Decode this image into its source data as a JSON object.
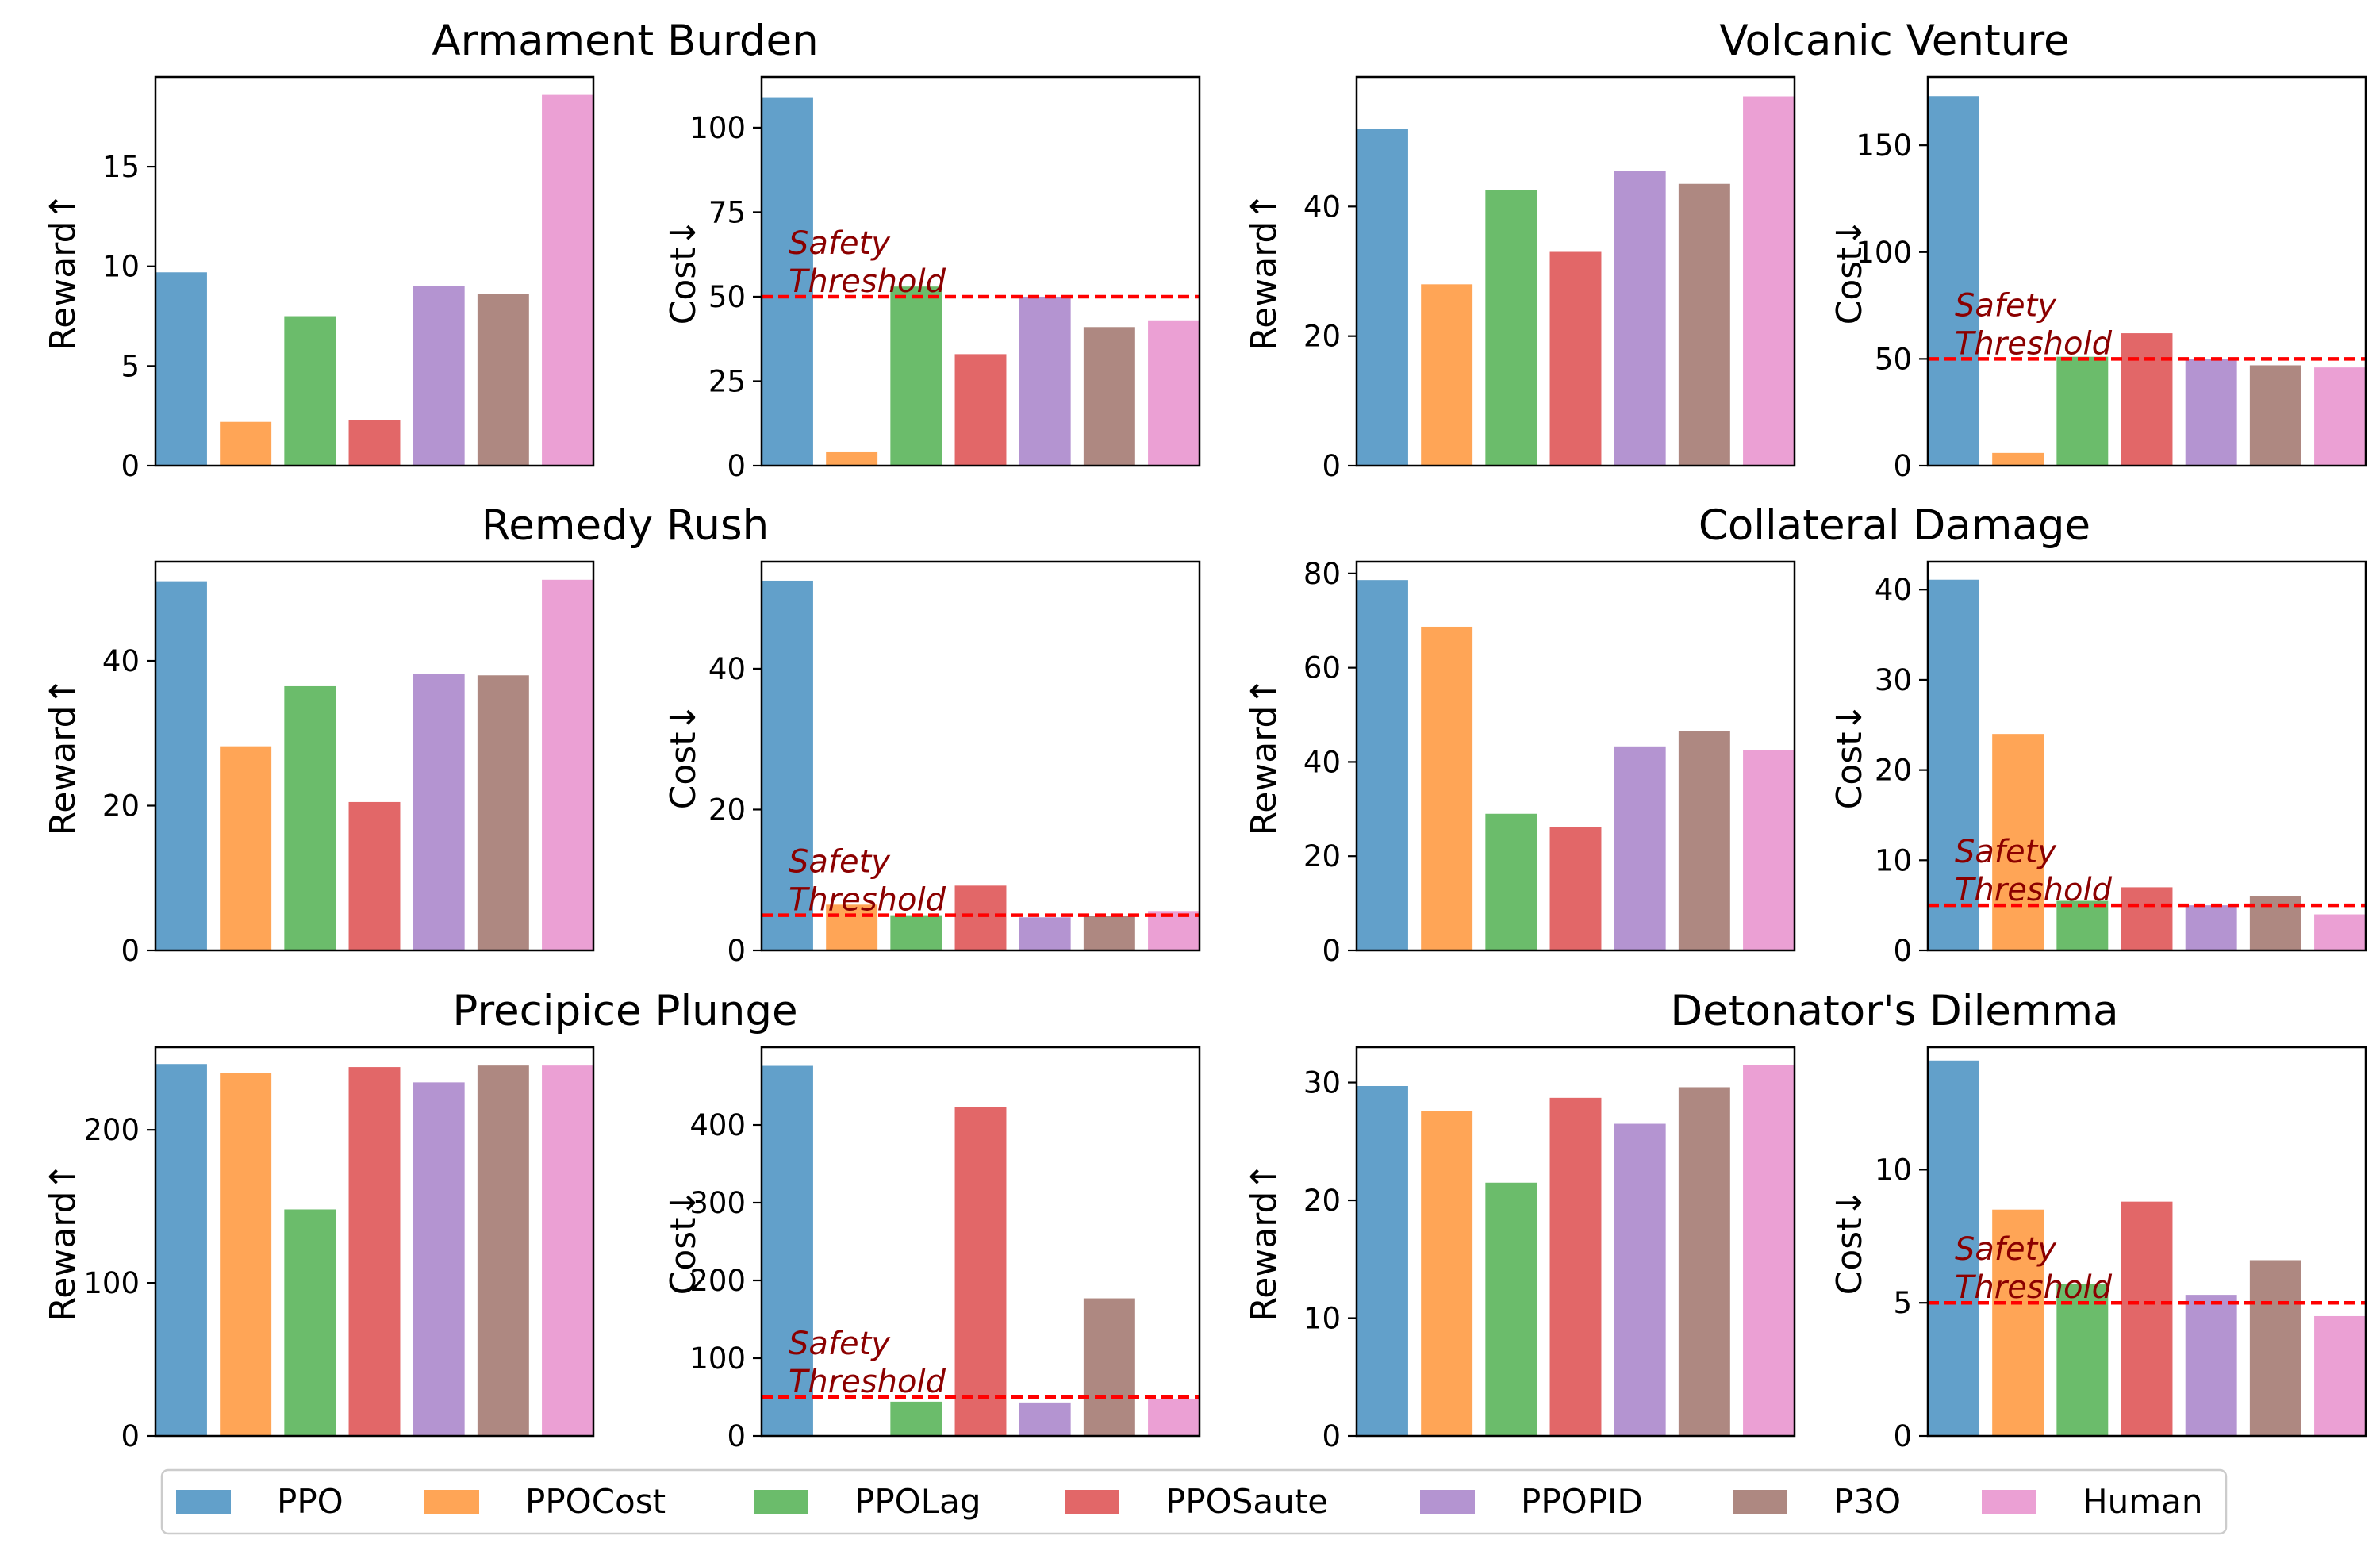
{
  "legend": {
    "placement": "bottom",
    "entries": [
      {
        "name": "PPO",
        "color": "#1f77b4"
      },
      {
        "name": "PPOCost",
        "color": "#ff7f0e"
      },
      {
        "name": "PPOLag",
        "color": "#2ca02c"
      },
      {
        "name": "PPOSaute",
        "color": "#d62728"
      },
      {
        "name": "PPOPID",
        "color": "#9467bd"
      },
      {
        "name": "P3O",
        "color": "#8c564b"
      },
      {
        "name": "Human",
        "color": "#e377c2"
      }
    ]
  },
  "threshold_style": {
    "line_color": "#ff0000",
    "text_color": "#8b0000",
    "label_line1": "Safety",
    "label_line2": "Threshold"
  },
  "chart_data": [
    {
      "type": "bar",
      "group": "Armament Burden",
      "ylabel": "Reward↑",
      "ylim": [
        0,
        19.5
      ],
      "yticks": [
        0,
        5,
        10,
        15
      ],
      "categories": [
        "PPO",
        "PPOCost",
        "PPOLag",
        "PPOSaute",
        "PPOPID",
        "P3O",
        "Human"
      ],
      "values": [
        9.7,
        2.2,
        7.5,
        2.3,
        9.0,
        8.6,
        18.6
      ]
    },
    {
      "type": "bar",
      "group": "Armament Burden",
      "ylabel": "Cost↓",
      "ylim": [
        0,
        115
      ],
      "yticks": [
        0,
        25,
        50,
        75,
        100
      ],
      "categories": [
        "PPO",
        "PPOCost",
        "PPOLag",
        "PPOSaute",
        "PPOPID",
        "P3O",
        "Human"
      ],
      "values": [
        109,
        4,
        53,
        33,
        50,
        41,
        43
      ],
      "threshold": 50
    },
    {
      "type": "bar",
      "group": "Volcanic Venture",
      "ylabel": "Reward↑",
      "ylim": [
        0,
        60
      ],
      "yticks": [
        0,
        20,
        40
      ],
      "categories": [
        "PPO",
        "PPOCost",
        "PPOLag",
        "PPOSaute",
        "PPOPID",
        "P3O",
        "Human"
      ],
      "values": [
        52,
        28,
        42.5,
        33,
        45.5,
        43.5,
        57
      ]
    },
    {
      "type": "bar",
      "group": "Volcanic Venture",
      "ylabel": "Cost↓",
      "ylim": [
        0,
        182
      ],
      "yticks": [
        0,
        50,
        100,
        150
      ],
      "categories": [
        "PPO",
        "PPOCost",
        "PPOLag",
        "PPOSaute",
        "PPOPID",
        "P3O",
        "Human"
      ],
      "values": [
        173,
        6,
        51,
        62,
        50,
        47,
        46
      ],
      "threshold": 50
    },
    {
      "type": "bar",
      "group": "Remedy Rush",
      "ylabel": "Reward↑",
      "ylim": [
        0,
        53.7
      ],
      "yticks": [
        0,
        20,
        40
      ],
      "categories": [
        "PPO",
        "PPOCost",
        "PPOLag",
        "PPOSaute",
        "PPOPID",
        "P3O",
        "Human"
      ],
      "values": [
        51,
        28.2,
        36.5,
        20.5,
        38.2,
        38,
        51.2
      ]
    },
    {
      "type": "bar",
      "group": "Remedy Rush",
      "ylabel": "Cost↓",
      "ylim": [
        0,
        55.2
      ],
      "yticks": [
        0,
        20,
        40
      ],
      "categories": [
        "PPO",
        "PPOCost",
        "PPOLag",
        "PPOSaute",
        "PPOPID",
        "P3O",
        "Human"
      ],
      "values": [
        52.5,
        6.5,
        5,
        9.2,
        4.7,
        4.9,
        5.6
      ],
      "threshold": 5
    },
    {
      "type": "bar",
      "group": "Collateral Damage",
      "ylabel": "Reward↑",
      "ylim": [
        0,
        82.5
      ],
      "yticks": [
        0,
        20,
        40,
        60,
        80
      ],
      "categories": [
        "PPO",
        "PPOCost",
        "PPOLag",
        "PPOSaute",
        "PPOPID",
        "P3O",
        "Human"
      ],
      "values": [
        78.6,
        68.7,
        29,
        26.2,
        43.3,
        46.5,
        42.5
      ]
    },
    {
      "type": "bar",
      "group": "Collateral Damage",
      "ylabel": "Cost↓",
      "ylim": [
        0,
        43.1
      ],
      "yticks": [
        0,
        10,
        20,
        30,
        40
      ],
      "categories": [
        "PPO",
        "PPOCost",
        "PPOLag",
        "PPOSaute",
        "PPOPID",
        "P3O",
        "Human"
      ],
      "values": [
        41.1,
        24,
        5.5,
        7,
        5,
        6,
        4
      ],
      "threshold": 5
    },
    {
      "type": "bar",
      "group": "Precipice Plunge",
      "ylabel": "Reward↑",
      "ylim": [
        0,
        254
      ],
      "yticks": [
        0,
        100,
        200
      ],
      "categories": [
        "PPO",
        "PPOCost",
        "PPOLag",
        "PPOSaute",
        "PPOPID",
        "P3O",
        "Human"
      ],
      "values": [
        243,
        237,
        148,
        241,
        231,
        242,
        242
      ]
    },
    {
      "type": "bar",
      "group": "Precipice Plunge",
      "ylabel": "Cost↓",
      "ylim": [
        0,
        500
      ],
      "yticks": [
        0,
        100,
        200,
        300,
        400
      ],
      "categories": [
        "PPO",
        "PPOCost",
        "PPOLag",
        "PPOSaute",
        "PPOPID",
        "P3O",
        "Human"
      ],
      "values": [
        476,
        0,
        44,
        423,
        43,
        177,
        48
      ],
      "threshold": 50
    },
    {
      "type": "bar",
      "group": "Detonator's Dilemma",
      "ylabel": "Reward↑",
      "ylim": [
        0,
        33
      ],
      "yticks": [
        0,
        10,
        20,
        30
      ],
      "categories": [
        "PPO",
        "PPOCost",
        "PPOLag",
        "PPOSaute",
        "PPOPID",
        "P3O",
        "Human"
      ],
      "values": [
        29.7,
        27.6,
        21.5,
        28.7,
        26.5,
        29.6,
        31.5
      ]
    },
    {
      "type": "bar",
      "group": "Detonator's Dilemma",
      "ylabel": "Cost↓",
      "ylim": [
        0,
        14.6
      ],
      "yticks": [
        0,
        5,
        10
      ],
      "categories": [
        "PPO",
        "PPOCost",
        "PPOLag",
        "PPOSaute",
        "PPOPID",
        "P3O",
        "Human"
      ],
      "values": [
        14.1,
        8.5,
        5.7,
        8.8,
        5.3,
        6.6,
        4.5
      ],
      "threshold": 5
    }
  ]
}
